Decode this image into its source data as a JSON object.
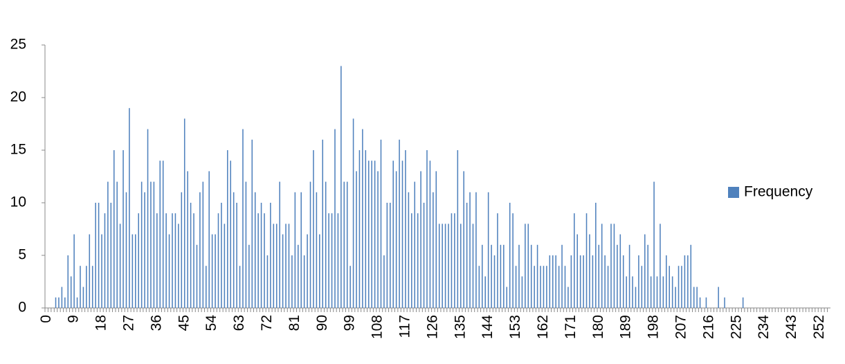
{
  "chart_data": {
    "type": "bar",
    "categories": [
      0,
      null,
      null,
      null,
      null,
      null,
      null,
      null,
      null,
      9,
      null,
      null,
      null,
      null,
      null,
      null,
      null,
      null,
      18,
      null,
      null,
      null,
      null,
      null,
      null,
      null,
      null,
      27,
      null,
      null,
      null,
      null,
      null,
      null,
      null,
      null,
      36,
      null,
      null,
      null,
      null,
      null,
      null,
      null,
      null,
      45,
      null,
      null,
      null,
      null,
      null,
      null,
      null,
      null,
      54,
      null,
      null,
      null,
      null,
      null,
      null,
      null,
      null,
      63,
      null,
      null,
      null,
      null,
      null,
      null,
      null,
      null,
      72,
      null,
      null,
      null,
      null,
      null,
      null,
      null,
      null,
      81,
      null,
      null,
      null,
      null,
      null,
      null,
      null,
      null,
      90,
      null,
      null,
      null,
      null,
      null,
      null,
      null,
      null,
      99,
      null,
      null,
      null,
      null,
      null,
      null,
      null,
      null,
      108,
      null,
      null,
      null,
      null,
      null,
      null,
      null,
      null,
      117,
      null,
      null,
      null,
      null,
      null,
      null,
      null,
      null,
      126,
      null,
      null,
      null,
      null,
      null,
      null,
      null,
      null,
      135,
      null,
      null,
      null,
      null,
      null,
      null,
      null,
      null,
      144,
      null,
      null,
      null,
      null,
      null,
      null,
      null,
      null,
      153,
      null,
      null,
      null,
      null,
      null,
      null,
      null,
      null,
      162,
      null,
      null,
      null,
      null,
      null,
      null,
      null,
      null,
      171,
      null,
      null,
      null,
      null,
      null,
      null,
      null,
      null,
      180,
      null,
      null,
      null,
      null,
      null,
      null,
      null,
      null,
      189,
      null,
      null,
      null,
      null,
      null,
      null,
      null,
      null,
      198,
      null,
      null,
      null,
      null,
      null,
      null,
      null,
      null,
      207,
      null,
      null,
      null,
      null,
      null,
      null,
      null,
      null,
      216,
      null,
      null,
      null,
      null,
      null,
      null,
      null,
      null,
      225,
      null,
      null,
      null,
      null,
      null,
      null,
      null,
      null,
      234,
      null,
      null,
      null,
      null,
      null,
      null,
      null,
      null,
      243,
      null,
      null,
      null,
      null,
      null,
      null,
      null,
      null,
      252,
      null,
      null,
      null
    ],
    "series": [
      {
        "name": "Frequency",
        "color": "#4f81bd",
        "values": [
          0,
          0,
          0,
          1,
          1,
          2,
          1,
          5,
          3,
          7,
          1,
          4,
          2,
          4,
          7,
          4,
          10,
          10,
          7,
          9,
          12,
          10,
          15,
          12,
          8,
          15,
          11,
          19,
          7,
          7,
          9,
          12,
          11,
          17,
          12,
          12,
          9,
          14,
          14,
          9,
          7,
          9,
          9,
          8,
          11,
          18,
          13,
          10,
          9,
          6,
          11,
          12,
          4,
          13,
          7,
          7,
          9,
          10,
          8,
          15,
          14,
          11,
          10,
          4,
          17,
          12,
          6,
          16,
          11,
          9,
          10,
          9,
          5,
          10,
          8,
          8,
          12,
          7,
          8,
          8,
          5,
          11,
          6,
          11,
          5,
          7,
          12,
          15,
          11,
          7,
          16,
          12,
          9,
          9,
          17,
          9,
          23,
          12,
          12,
          4,
          18,
          13,
          15,
          17,
          15,
          14,
          14,
          14,
          13,
          16,
          5,
          10,
          10,
          14,
          13,
          16,
          14,
          15,
          11,
          9,
          12,
          9,
          13,
          10,
          15,
          14,
          11,
          13,
          8,
          8,
          8,
          8,
          9,
          9,
          15,
          8,
          13,
          10,
          11,
          8,
          11,
          4,
          6,
          3,
          11,
          6,
          5,
          9,
          6,
          6,
          2,
          10,
          9,
          4,
          6,
          3,
          8,
          8,
          6,
          4,
          6,
          4,
          4,
          4,
          5,
          5,
          5,
          4,
          6,
          4,
          2,
          5,
          9,
          7,
          5,
          5,
          9,
          7,
          5,
          10,
          6,
          8,
          5,
          4,
          8,
          8,
          6,
          7,
          5,
          3,
          6,
          3,
          2,
          5,
          4,
          7,
          6,
          3,
          12,
          3,
          8,
          3,
          5,
          4,
          3,
          2,
          4,
          4,
          5,
          5,
          6,
          2,
          2,
          1,
          0,
          1,
          0,
          0,
          0,
          2,
          0,
          1,
          0,
          0,
          0,
          0,
          0,
          1,
          0,
          0,
          0,
          0,
          0,
          0,
          0,
          0,
          0,
          0,
          0,
          0,
          0,
          0,
          0,
          0,
          0,
          0,
          0,
          0,
          0,
          0,
          0,
          0,
          0,
          0,
          0,
          0
        ]
      }
    ],
    "ylim": [
      0,
      25
    ],
    "yticks": [
      0,
      5,
      10,
      15,
      20,
      25
    ],
    "grid": false,
    "legend": "right"
  }
}
